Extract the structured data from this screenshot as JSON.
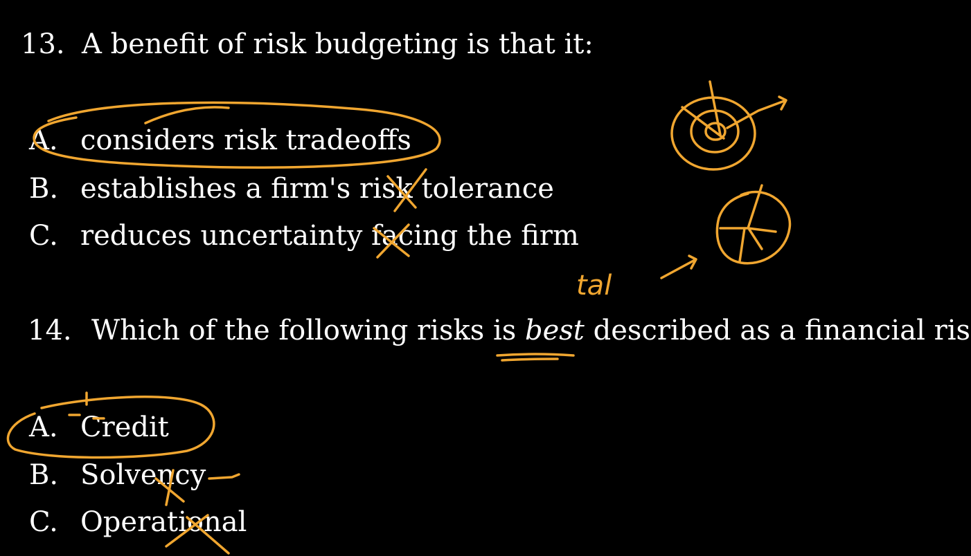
{
  "questions": [
    {
      "number": "13.",
      "text": "A benefit of risk budgeting is that it:",
      "options": [
        {
          "letter": "A.",
          "text": "considers risk tradeoffs"
        },
        {
          "letter": "B.",
          "text": "establishes a firm's risk tolerance"
        },
        {
          "letter": "C.",
          "text": "reduces uncertainty facing the firm"
        }
      ]
    },
    {
      "number": "14.",
      "text_before": "Which of the following risks is ",
      "text_emphasis": "best",
      "text_after": " described as a financial risk?",
      "options": [
        {
          "letter": "A.",
          "text": "Credit"
        },
        {
          "letter": "B.",
          "text": "Solvency"
        },
        {
          "letter": "C.",
          "text": "Operational"
        }
      ]
    }
  ],
  "annotations": {
    "ink_color": "#f0a630",
    "handwritten_note": "tal",
    "marks": [
      "circle-around-13-A",
      "cross-on-13-B",
      "cross-on-13-C",
      "target-sketch",
      "pie-sketch",
      "underline-best",
      "circle-around-14-A",
      "cross-on-14-B",
      "cross-on-14-C"
    ]
  }
}
